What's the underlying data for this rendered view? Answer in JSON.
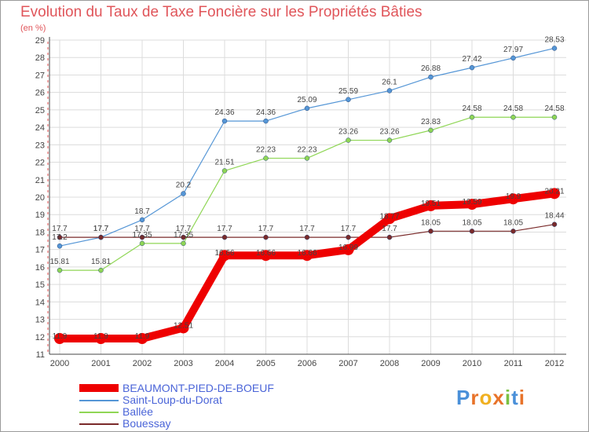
{
  "title": "Evolution du Taux de Taxe Foncière sur les Propriétés Bâties",
  "unit_label": "(en %)",
  "logo": "Proxiti",
  "chart_data": {
    "type": "line",
    "title": "Evolution du Taux de Taxe Foncière sur les Propriétés Bâties",
    "ylabel": "(en %)",
    "xlabel": "",
    "ylim": [
      11,
      29
    ],
    "grid": true,
    "x": [
      "2000",
      "2001",
      "2002",
      "2003",
      "2004",
      "2005",
      "2006",
      "2007",
      "2008",
      "2009",
      "2010",
      "2011",
      "2012"
    ],
    "yticks": [
      "11",
      "12",
      "13",
      "14",
      "15",
      "16",
      "17",
      "18",
      "19",
      "20",
      "21",
      "22",
      "23",
      "24",
      "25",
      "26",
      "27",
      "28",
      "29"
    ],
    "series": [
      {
        "name": "BEAUMONT-PIED-DE-BOEUF",
        "color": "#ee0000",
        "values": [
          11.9,
          11.9,
          11.9,
          12.51,
          16.66,
          16.66,
          16.66,
          16.99,
          18.77,
          19.51,
          19.59,
          19.9,
          20.21
        ],
        "labels": [
          "11.9",
          "11.9",
          "11.9",
          "12.51",
          "16.66",
          "16.66",
          "16.66",
          "16.99",
          "18.77",
          "19.51",
          "19.59",
          "19.9",
          "20.21"
        ]
      },
      {
        "name": "Saint-Loup-du-Dorat",
        "color": "#5596d6",
        "values": [
          17.2,
          17.7,
          18.7,
          20.2,
          24.36,
          24.36,
          25.09,
          25.59,
          26.1,
          26.88,
          27.42,
          27.97,
          28.53
        ],
        "labels": [
          "17.2",
          "17.7",
          "18.7",
          "20.2",
          "24.36",
          "24.36",
          "25.09",
          "25.59",
          "26.1",
          "26.88",
          "27.42",
          "27.97",
          "28.53"
        ]
      },
      {
        "name": "Ballée",
        "color": "#8fd655",
        "values": [
          15.81,
          15.81,
          17.35,
          17.35,
          21.51,
          22.23,
          22.23,
          23.26,
          23.26,
          23.83,
          24.58,
          24.58,
          24.58
        ],
        "labels": [
          "15.81",
          "15.81",
          "17.35",
          "17.35",
          "21.51",
          "22.23",
          "22.23",
          "23.26",
          "23.26",
          "23.83",
          "24.58",
          "24.58",
          "24.58"
        ]
      },
      {
        "name": "Bouessay",
        "color": "#7a2a2a",
        "values": [
          17.7,
          17.7,
          17.7,
          17.7,
          17.7,
          17.7,
          17.7,
          17.7,
          17.7,
          18.05,
          18.05,
          18.05,
          18.44
        ],
        "labels": [
          "17.7",
          "17.7",
          "17.7",
          "17.7",
          "17.7",
          "17.7",
          "17.7",
          "17.7",
          "17.7",
          "18.05",
          "18.05",
          "18.05",
          "18.44"
        ]
      }
    ]
  }
}
